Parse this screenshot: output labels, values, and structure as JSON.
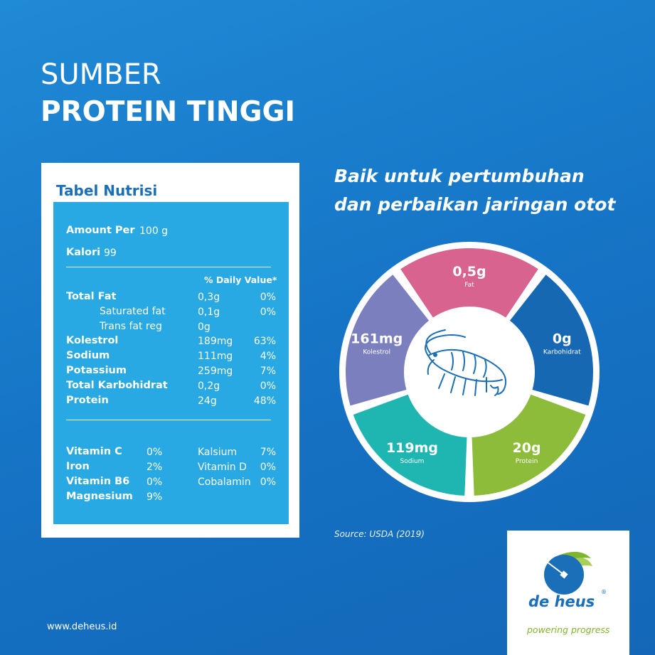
{
  "header": {
    "line1": "SUMBER",
    "line2": "PROTEIN TINGGI"
  },
  "nutrition": {
    "title": "Tabel Nutrisi",
    "amount_label": "Amount Per",
    "amount_value": "100 g",
    "kalori_label": "Kalori",
    "kalori_value": "99",
    "dv_header": "% Daily Value*",
    "rows": [
      {
        "label": "Total Fat",
        "amount": "0,3g",
        "dv": "0%"
      },
      {
        "label": "Saturated fat",
        "amount": "0,1g",
        "dv": "0%"
      },
      {
        "label": "Trans fat reg",
        "amount": "0g",
        "dv": ""
      },
      {
        "label": "Kolestrol",
        "amount": "189mg",
        "dv": "63%"
      },
      {
        "label": "Sodium",
        "amount": "111mg",
        "dv": "4%"
      },
      {
        "label": "Potassium",
        "amount": "259mg",
        "dv": "7%"
      },
      {
        "label": "Total Karbohidrat",
        "amount": "0,2g",
        "dv": "0%"
      },
      {
        "label": "Protein",
        "amount": "24g",
        "dv": "48%"
      }
    ],
    "vitamins_left": [
      {
        "label": "Vitamin C",
        "value": "0%"
      },
      {
        "label": "Iron",
        "value": "2%"
      },
      {
        "label": "Vitamin B6",
        "value": "0%"
      },
      {
        "label": "Magnesium",
        "value": "9%"
      }
    ],
    "vitamins_right": [
      {
        "label": "Kalsium",
        "value": "7%"
      },
      {
        "label": "Vitamin D",
        "value": "0%"
      },
      {
        "label": "Cobalamin",
        "value": "0%"
      }
    ]
  },
  "tagline": {
    "line1": "Baik untuk pertumbuhan",
    "line2": "dan perbaikan jaringan otot"
  },
  "wheel": {
    "segments": [
      {
        "value": "0,5g",
        "label": "Fat",
        "color": "#d9638f"
      },
      {
        "value": "0g",
        "label": "Karbohidrat",
        "color": "#1768b3"
      },
      {
        "value": "20g",
        "label": "Protein",
        "color": "#8dbb3a"
      },
      {
        "value": "119mg",
        "label": "Sodium",
        "color": "#1fb5b0"
      },
      {
        "value": "161mg",
        "label": "Kolestrol",
        "color": "#7b7fbd"
      }
    ],
    "center_icon": "shrimp-icon"
  },
  "source": "Source: USDA (2019)",
  "logo": {
    "name": "de heus",
    "tagline": "powering progress",
    "reg_mark": "®"
  },
  "website": "www.deheus.id",
  "colors": {
    "background": "#1572c4",
    "card_inner": "#29a9e4",
    "brand_blue": "#1b6fb8",
    "brand_green": "#7fb52d"
  }
}
